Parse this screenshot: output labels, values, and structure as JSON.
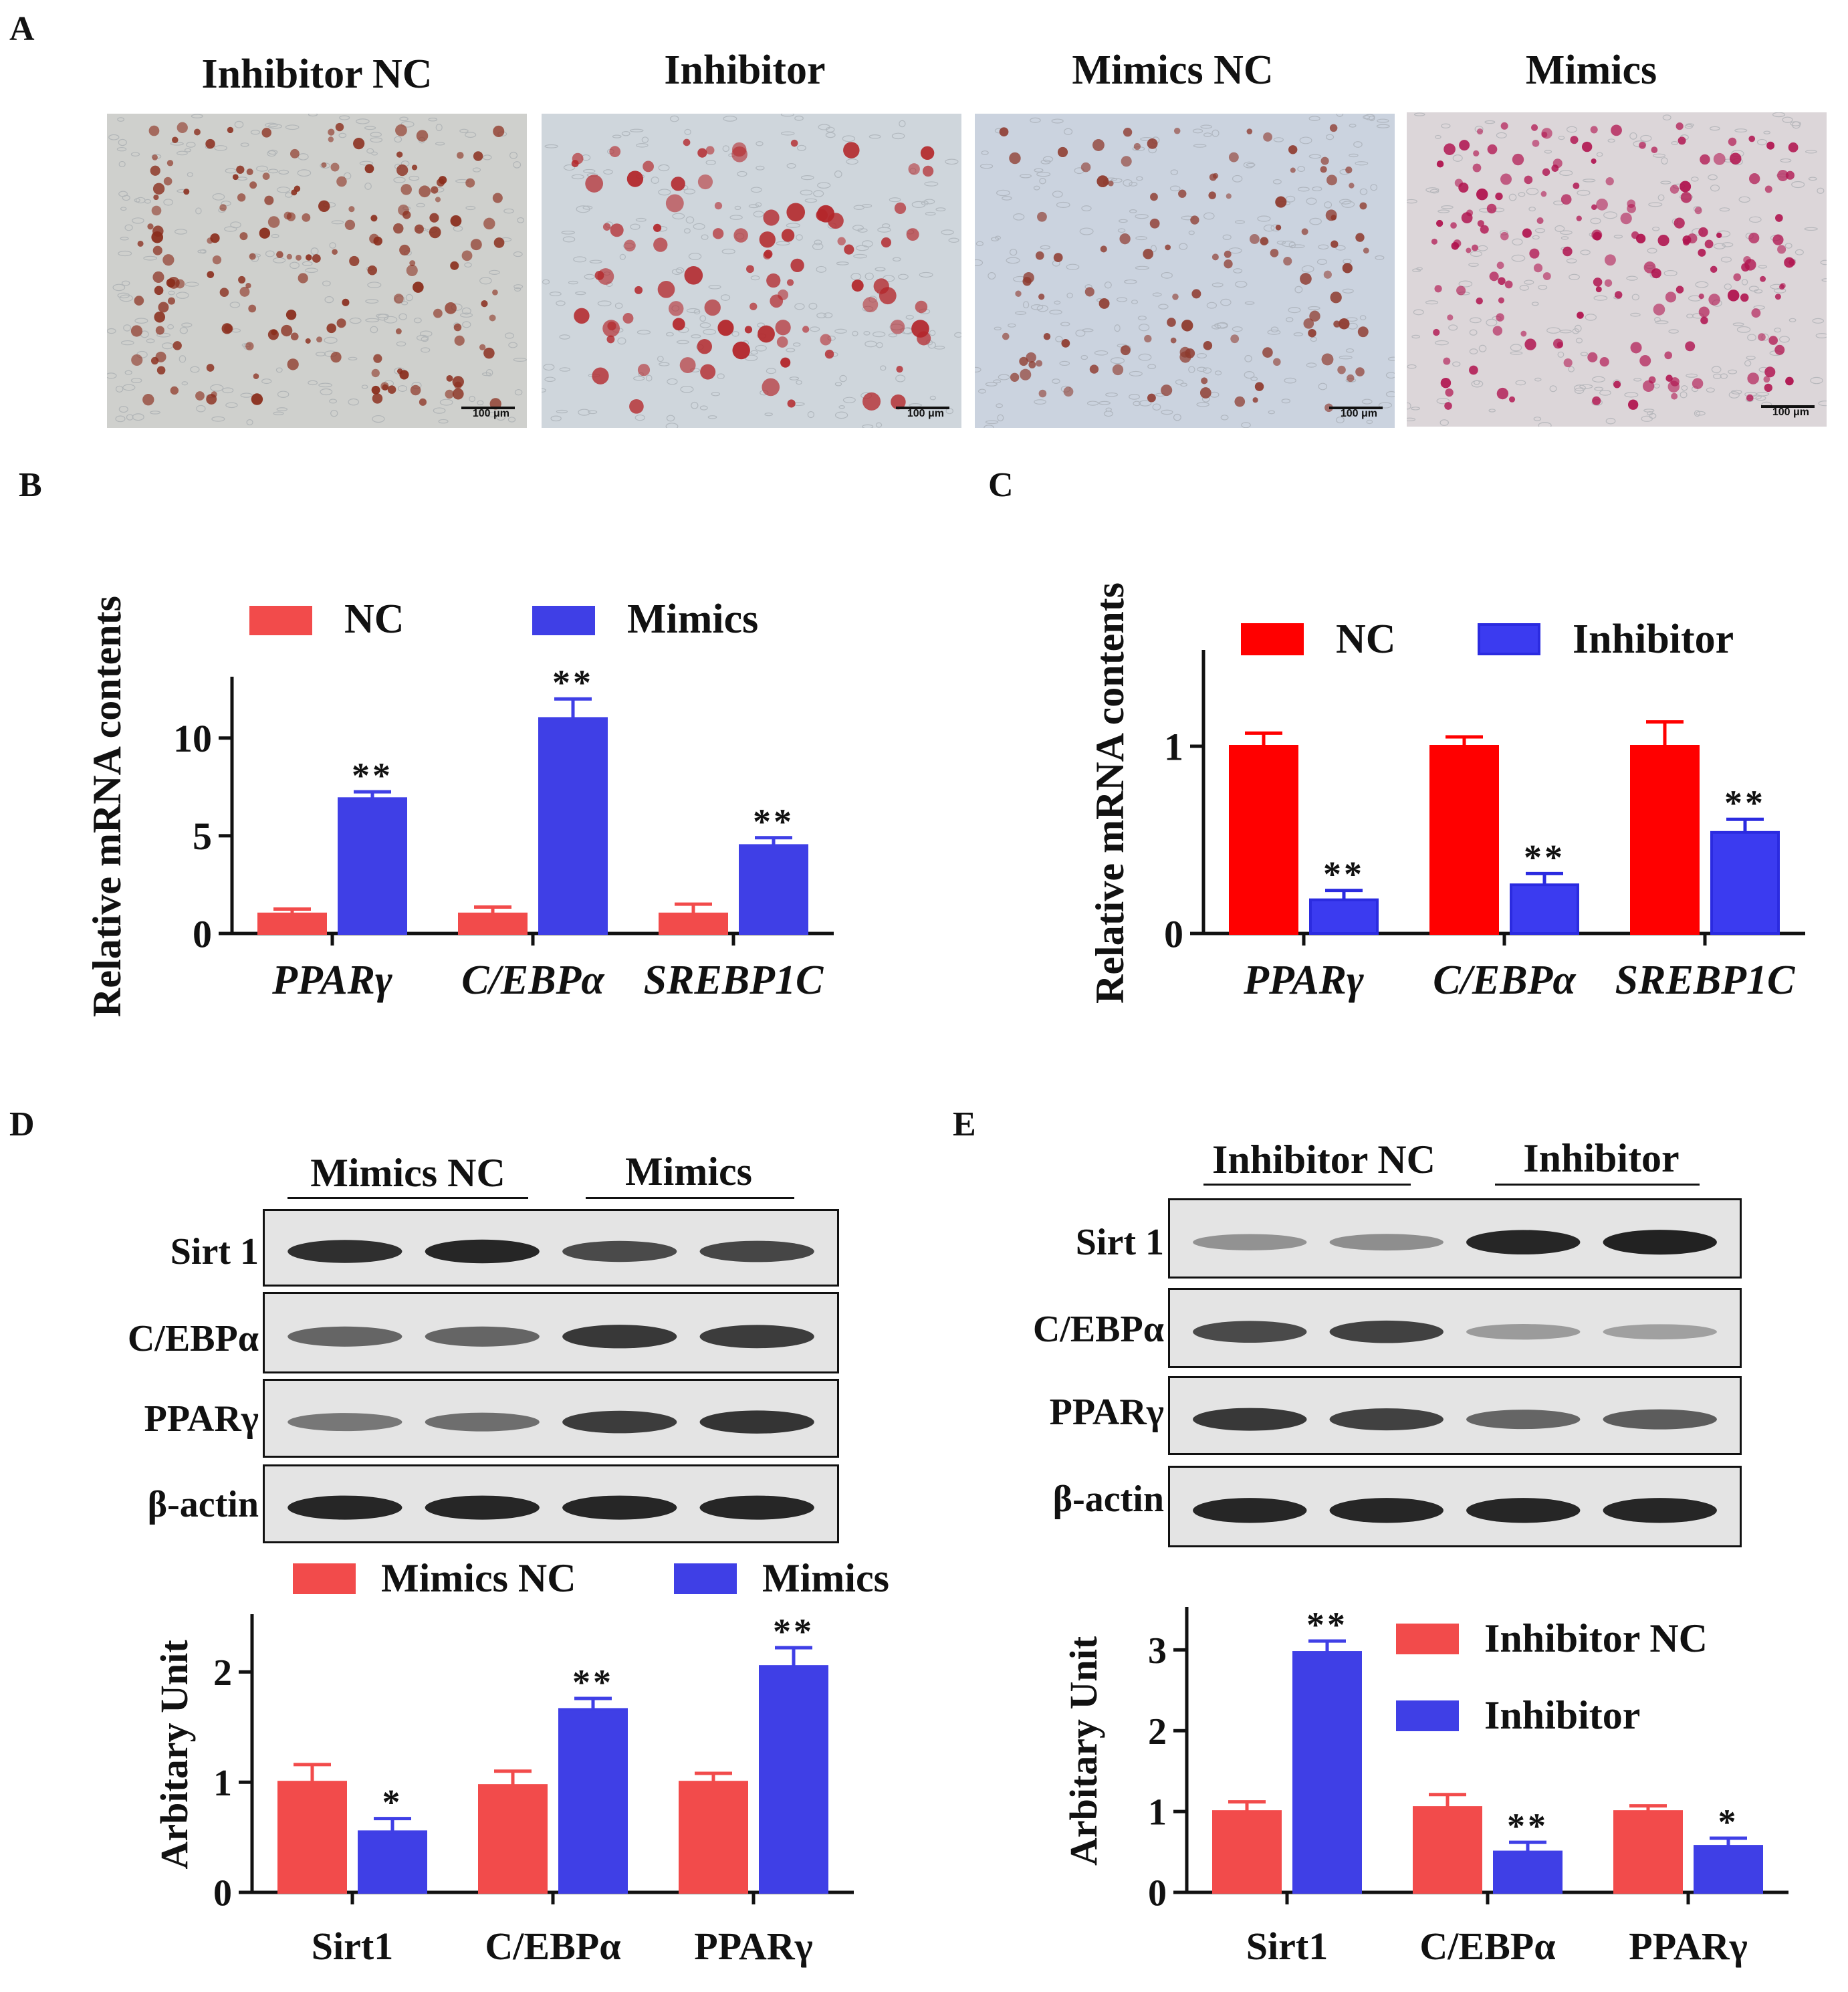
{
  "panel_a": {
    "letter": "A",
    "images": [
      {
        "title": "Inhibitor NC",
        "scale": "100 μm",
        "bg": "#cfd0cd",
        "dot": "#8a2d1c"
      },
      {
        "title": "Inhibitor",
        "scale": "100 μm",
        "bg": "#cfd6dc",
        "dot": "#b3262a"
      },
      {
        "title": "Mimics NC",
        "scale": "100 μm",
        "bg": "#cbd3df",
        "dot": "#8e3a2e"
      },
      {
        "title": "Mimics",
        "scale": "100 μm",
        "bg": "#dcd6d9",
        "dot": "#b0124e"
      }
    ]
  },
  "panel_d_blot": {
    "letter": "D",
    "group_labels": [
      "Mimics NC",
      "Mimics"
    ],
    "rows": [
      {
        "label": "Sirt 1",
        "intensity": [
          0.85,
          0.9,
          0.7,
          0.72
        ]
      },
      {
        "label": "C/EBPα",
        "intensity": [
          0.55,
          0.55,
          0.8,
          0.78
        ]
      },
      {
        "label": "PPARγ",
        "intensity": [
          0.45,
          0.5,
          0.78,
          0.82
        ]
      },
      {
        "label": "β-actin",
        "intensity": [
          0.9,
          0.9,
          0.9,
          0.9
        ]
      }
    ]
  },
  "panel_e_blot": {
    "letter": "E",
    "group_labels": [
      "Inhibitor NC",
      "Inhibitor"
    ],
    "rows": [
      {
        "label": "Sirt 1",
        "intensity": [
          0.3,
          0.32,
          0.9,
          0.92
        ]
      },
      {
        "label": "C/EBPα",
        "intensity": [
          0.7,
          0.75,
          0.25,
          0.22
        ]
      },
      {
        "label": "PPARγ",
        "intensity": [
          0.8,
          0.75,
          0.55,
          0.6
        ]
      },
      {
        "label": "β-actin",
        "intensity": [
          0.9,
          0.9,
          0.9,
          0.9
        ]
      }
    ]
  },
  "chart_data": [
    {
      "id": "B",
      "letter": "B",
      "type": "bar",
      "ylabel": "Relative mRNA contents",
      "categories": [
        "PPARγ",
        "C/EBPα",
        "SREBP1C"
      ],
      "category_italic": true,
      "ylim": [
        0,
        13
      ],
      "yticks": [
        0,
        5,
        10
      ],
      "series": [
        {
          "name": "NC",
          "color": "#f24b4b",
          "fill": "#f24b4b",
          "values": [
            1.0,
            1.0,
            1.0
          ],
          "errors": [
            0.25,
            0.35,
            0.5
          ],
          "sig": [
            "",
            "",
            ""
          ]
        },
        {
          "name": "Mimics",
          "color": "#3f3fe6",
          "fill": "#3f3fe6",
          "values": [
            6.9,
            11.0,
            4.5
          ],
          "errors": [
            0.35,
            1.0,
            0.4
          ],
          "sig": [
            "**",
            "**",
            "**"
          ]
        }
      ],
      "legend": "top"
    },
    {
      "id": "C",
      "letter": "C",
      "type": "bar",
      "ylabel": "Relative mRNA contents",
      "categories": [
        "PPARγ",
        "C/EBPα",
        "SREBP1C"
      ],
      "category_italic": true,
      "ylim": [
        0,
        1.5
      ],
      "yticks": [
        0,
        1
      ],
      "series": [
        {
          "name": "NC",
          "color": "#ff0000",
          "fill": "#ff0000",
          "values": [
            1.0,
            1.0,
            1.0
          ],
          "errors": [
            0.07,
            0.05,
            0.13
          ],
          "sig": [
            "",
            "",
            ""
          ]
        },
        {
          "name": "Inhibitor",
          "color": "#2b2be0",
          "fill": "#3b3bf0",
          "values": [
            0.18,
            0.26,
            0.54
          ],
          "errors": [
            0.05,
            0.06,
            0.07
          ],
          "sig": [
            "**",
            "**",
            "**"
          ]
        }
      ],
      "legend": "top"
    },
    {
      "id": "D",
      "letter": "",
      "type": "bar",
      "ylabel": "Arbitary Unit",
      "categories": [
        "Sirt1",
        "C/EBPα",
        "PPARγ"
      ],
      "category_italic": false,
      "ylim": [
        0,
        2.5
      ],
      "yticks": [
        0,
        1,
        2
      ],
      "series": [
        {
          "name": "Mimics NC",
          "color": "#f24b4b",
          "fill": "#f24b4b",
          "values": [
            1.0,
            0.97,
            1.0
          ],
          "errors": [
            0.16,
            0.13,
            0.08
          ],
          "sig": [
            "",
            "",
            ""
          ]
        },
        {
          "name": "Mimics",
          "color": "#3f3fe6",
          "fill": "#3f3fe6",
          "values": [
            0.55,
            1.66,
            2.05
          ],
          "errors": [
            0.12,
            0.1,
            0.17
          ],
          "sig": [
            "*",
            "**",
            "**"
          ]
        }
      ],
      "legend": "top"
    },
    {
      "id": "E",
      "letter": "",
      "type": "bar",
      "ylabel": "Arbitary Unit",
      "categories": [
        "Sirt1",
        "C/EBPα",
        "PPARγ"
      ],
      "category_italic": false,
      "ylim": [
        0,
        3.5
      ],
      "yticks": [
        0,
        1,
        2,
        3
      ],
      "series": [
        {
          "name": "Inhibitor NC",
          "color": "#f24b4b",
          "fill": "#f24b4b",
          "values": [
            1.0,
            1.05,
            1.0
          ],
          "errors": [
            0.12,
            0.16,
            0.07
          ],
          "sig": [
            "",
            "",
            ""
          ]
        },
        {
          "name": "Inhibitor",
          "color": "#3f3fe6",
          "fill": "#3f3fe6",
          "values": [
            2.97,
            0.5,
            0.57
          ],
          "errors": [
            0.14,
            0.12,
            0.1
          ],
          "sig": [
            "**",
            "**",
            "*"
          ]
        }
      ],
      "legend": "right"
    }
  ]
}
